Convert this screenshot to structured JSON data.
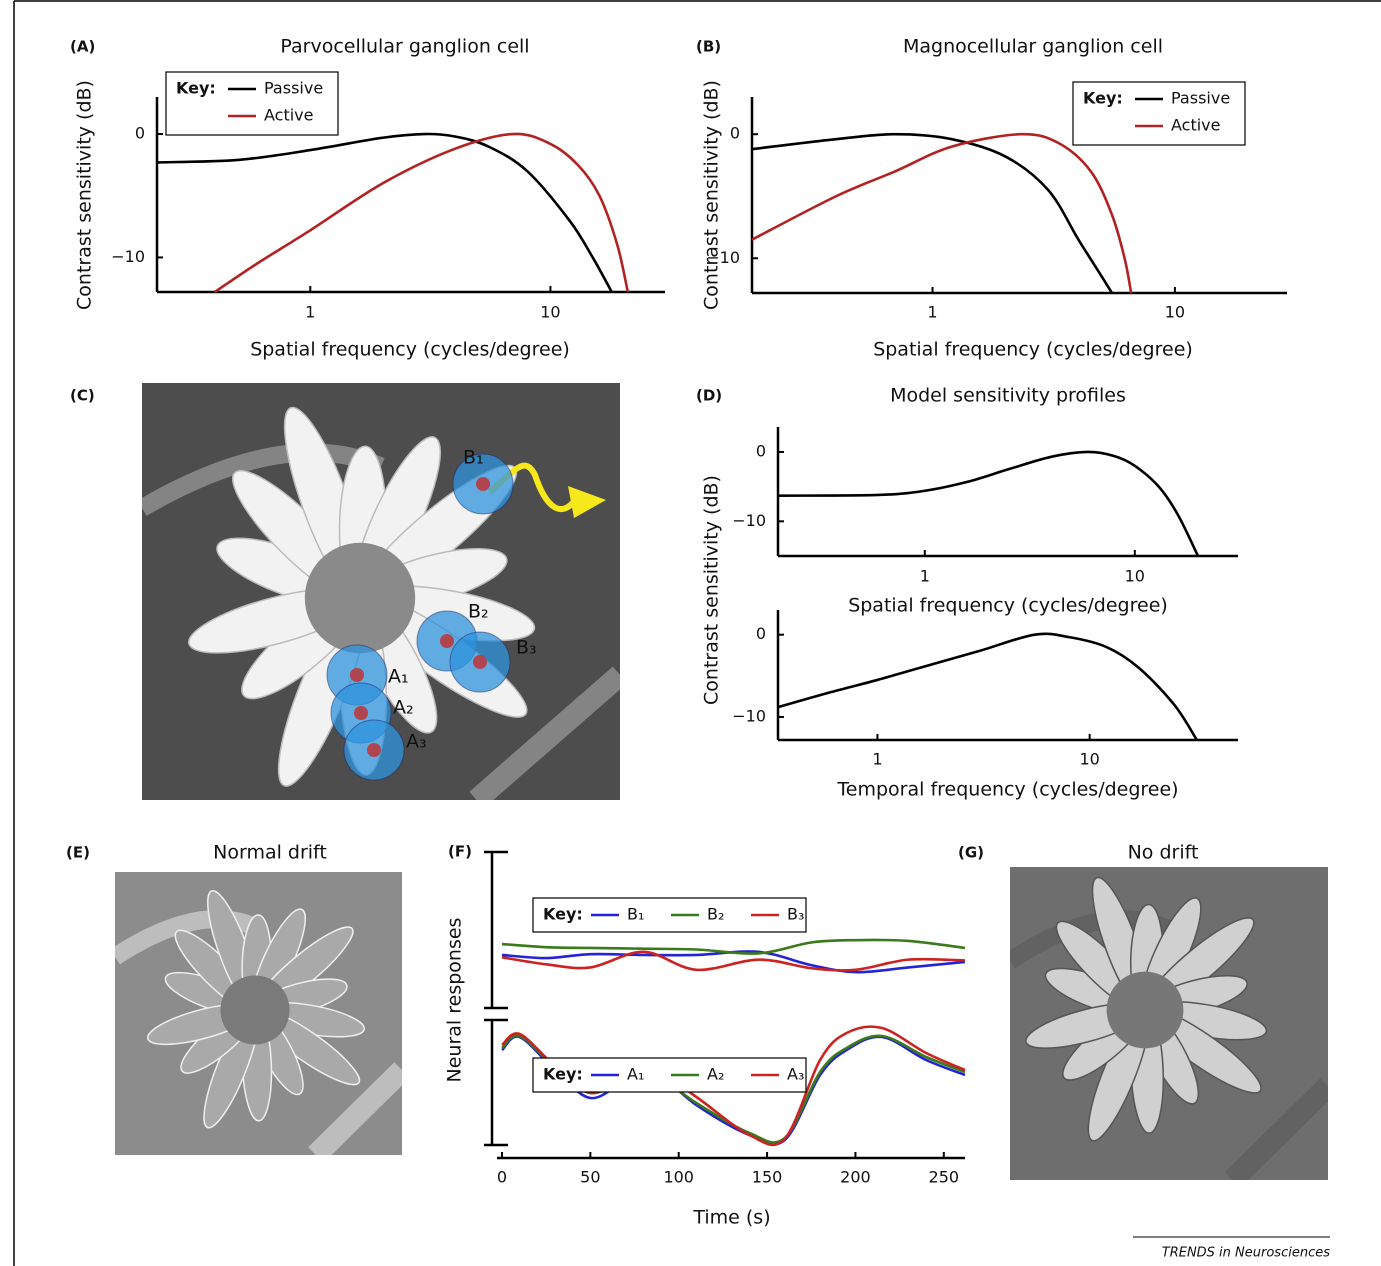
{
  "chart_data": [
    {
      "type": "line",
      "panel_label": "(A)",
      "title": "Parvocellular ganglion cell",
      "xlabel": "Spatial frequency (cycles/degree)",
      "ylabel": "Contrast sensitivity (dB)",
      "xscale": "log",
      "xlim": [
        0.23,
        30
      ],
      "ylim": [
        -12.8,
        3
      ],
      "xticks": [
        1,
        10
      ],
      "yticks": [
        0,
        {
          "value": -10,
          "label": "−10"
        }
      ],
      "legend_title": "Key:",
      "legend": "upper left",
      "series": [
        {
          "name": "Passive",
          "color": "#000000",
          "x": [
            0.23,
            0.5,
            1,
            2,
            3,
            4,
            5.5,
            8,
            12,
            15,
            18
          ],
          "values": [
            -2.3,
            -2.1,
            -1.3,
            -0.3,
            0,
            -0.2,
            -1,
            -3,
            -7,
            -10,
            -12.8
          ]
        },
        {
          "name": "Active",
          "color": "#b22222",
          "x": [
            0.4,
            0.6,
            1,
            2,
            4,
            7,
            10,
            13,
            16,
            19,
            21
          ],
          "values": [
            -12.8,
            -10.5,
            -7.8,
            -4,
            -1.2,
            0,
            -0.8,
            -2.5,
            -5,
            -9,
            -12.8
          ]
        }
      ]
    },
    {
      "type": "line",
      "panel_label": "(B)",
      "title": "Magnocellular ganglion cell",
      "xlabel": "Spatial frequency (cycles/degree)",
      "ylabel": "Contrast sensitivity (dB)",
      "xscale": "log",
      "xlim": [
        0.18,
        29
      ],
      "ylim": [
        -12.8,
        3
      ],
      "xticks": [
        1,
        10
      ],
      "yticks": [
        0,
        {
          "value": -10,
          "label": "−10"
        }
      ],
      "legend_title": "Key:",
      "legend": "upper right",
      "series": [
        {
          "name": "Passive",
          "color": "#000000",
          "x": [
            0.18,
            0.4,
            0.7,
            1.2,
            2,
            3,
            4,
            5,
            5.5
          ],
          "values": [
            -1.2,
            -0.4,
            0,
            -0.4,
            -1.8,
            -4.5,
            -8.5,
            -11.5,
            -12.8
          ]
        },
        {
          "name": "Active",
          "color": "#b22222",
          "x": [
            0.18,
            0.4,
            0.7,
            1.2,
            2.3,
            3.3,
            4.5,
            5.5,
            6.2,
            6.6
          ],
          "values": [
            -8.5,
            -5,
            -3,
            -1,
            0,
            -0.7,
            -3,
            -6.5,
            -10,
            -12.8
          ]
        }
      ]
    },
    {
      "type": "line",
      "panel_label": "(D)",
      "title": "Model sensitivity profiles",
      "xlabel": "Spatial frequency (cycles/degree)",
      "ylabel": "Contrast sensitivity (dB)",
      "xscale": "log",
      "xlim": [
        0.2,
        31
      ],
      "ylim": [
        -15,
        3.6
      ],
      "xticks": [
        1,
        10
      ],
      "yticks": [
        0,
        {
          "value": -10,
          "label": "−10"
        }
      ],
      "series": [
        {
          "color": "#000000",
          "x": [
            0.2,
            0.6,
            1,
            1.6,
            2.5,
            4,
            6,
            8,
            10,
            13,
            16,
            20
          ],
          "values": [
            -6.3,
            -6.2,
            -5.6,
            -4.3,
            -2.5,
            -0.7,
            0,
            -0.6,
            -2,
            -5,
            -9,
            -15
          ]
        }
      ]
    },
    {
      "type": "line",
      "xlabel": "Temporal frequency (cycles/degree)",
      "xscale": "log",
      "xlim": [
        0.34,
        50
      ],
      "ylim": [
        -12.8,
        3
      ],
      "xticks": [
        1,
        10
      ],
      "yticks": [
        0,
        {
          "value": -10,
          "label": "−10"
        }
      ],
      "series": [
        {
          "color": "#000000",
          "x": [
            0.34,
            0.6,
            1,
            1.5,
            3,
            5.5,
            8,
            12,
            17,
            25,
            32
          ],
          "values": [
            -8.8,
            -7,
            -5.5,
            -4.2,
            -2,
            0,
            -0.3,
            -1.5,
            -4,
            -8.5,
            -12.8
          ]
        }
      ]
    },
    {
      "type": "line",
      "panel_label": "(F)",
      "ylabel": "Neural responses",
      "xlim": [
        0,
        262
      ],
      "ylim": [
        0,
        10
      ],
      "legend_title": "Key:",
      "legend": "upper center",
      "series": [
        {
          "name": "B₁",
          "color": "#2323d8",
          "x": [
            0,
            25,
            50,
            80,
            110,
            145,
            175,
            200,
            230,
            262
          ],
          "values": [
            3.4,
            3.2,
            3.45,
            3.4,
            3.4,
            3.6,
            2.75,
            2.3,
            2.6,
            2.95
          ]
        },
        {
          "name": "B₂",
          "color": "#3a7a1a",
          "x": [
            0,
            25,
            50,
            80,
            110,
            145,
            175,
            200,
            230,
            262
          ],
          "values": [
            4.1,
            3.9,
            3.85,
            3.8,
            3.75,
            3.5,
            4.2,
            4.35,
            4.3,
            3.85
          ]
        },
        {
          "name": "B₃",
          "color": "#cc2222",
          "x": [
            0,
            25,
            50,
            80,
            110,
            145,
            175,
            200,
            230,
            262
          ],
          "values": [
            3.25,
            2.8,
            2.6,
            3.6,
            2.45,
            3.1,
            2.55,
            2.45,
            3.1,
            3.05
          ]
        }
      ]
    },
    {
      "type": "line",
      "xlabel": "Time (s)",
      "xlim": [
        0,
        262
      ],
      "ylim": [
        0,
        10
      ],
      "xticks": [
        0,
        50,
        100,
        150,
        200,
        250
      ],
      "legend_title": "Key:",
      "legend": "upper center",
      "series": [
        {
          "name": "A₁",
          "color": "#2323d8",
          "x": [
            0,
            10,
            30,
            50,
            70,
            85,
            110,
            140,
            160,
            180,
            195,
            215,
            240,
            262
          ],
          "values": [
            7.6,
            8.64,
            6,
            3.76,
            5.2,
            6,
            3.2,
            0.8,
            0.4,
            5.6,
            7.6,
            8.64,
            6.8,
            5.6
          ]
        },
        {
          "name": "A₂",
          "color": "#3a7a1a",
          "x": [
            0,
            10,
            30,
            50,
            70,
            85,
            110,
            140,
            160,
            180,
            195,
            215,
            240,
            262
          ],
          "values": [
            7.76,
            8.72,
            6.2,
            4.16,
            5.3,
            5.76,
            3.36,
            0.96,
            0.56,
            5.84,
            7.76,
            8.72,
            7.04,
            5.84
          ]
        },
        {
          "name": "A₃",
          "color": "#cc2222",
          "x": [
            0,
            10,
            30,
            50,
            70,
            85,
            110,
            140,
            160,
            180,
            195,
            215,
            240,
            262
          ],
          "values": [
            8,
            8.88,
            6.3,
            4.16,
            5.6,
            6.16,
            3.84,
            0.8,
            0.5,
            6.8,
            8.96,
            9.36,
            7.36,
            6
          ]
        }
      ]
    }
  ],
  "panels": {
    "C": {
      "label": "(C)",
      "markers": [
        {
          "label": "B₁"
        },
        {
          "label": "B₂"
        },
        {
          "label": "B₃"
        },
        {
          "label": "A₁"
        },
        {
          "label": "A₂"
        },
        {
          "label": "A₃"
        }
      ]
    },
    "E": {
      "label": "(E)",
      "title": "Normal drift"
    },
    "G": {
      "label": "(G)",
      "title": "No drift"
    }
  },
  "footer": "TRENDS in Neurosciences"
}
